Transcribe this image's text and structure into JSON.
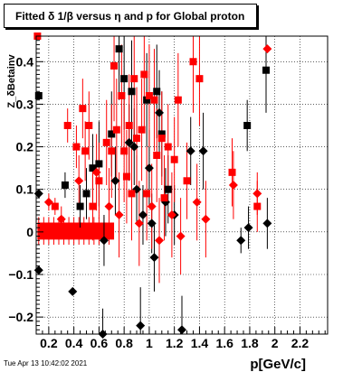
{
  "chart_data": {
    "type": "scatter",
    "title": "Fitted δ 1/β versus η and p for Global proton",
    "xlabel": "p[GeV/c]",
    "ylabel": "Z_δBetainv",
    "xlim": [
      0.1,
      2.42
    ],
    "ylim": [
      -0.24,
      0.46
    ],
    "xticks": [
      0.2,
      0.4,
      0.6,
      0.8,
      1.0,
      1.2,
      1.4,
      1.6,
      1.8,
      2.0,
      2.2
    ],
    "xtick_labels": [
      "0.2",
      "0.4",
      "0.6",
      "0.8",
      "1",
      "1.2",
      "1.4",
      "1.6",
      "1.8",
      "2",
      "2.2"
    ],
    "yticks": [
      -0.2,
      -0.1,
      0.0,
      0.1,
      0.2,
      0.3,
      0.4
    ],
    "ytick_labels": [
      "−0.2",
      "−0.1",
      "0",
      "0.1",
      "0.2",
      "0.3",
      "0.4"
    ],
    "grid": true,
    "series": [
      {
        "color": "#000000",
        "marker": "mixed",
        "points": [
          {
            "x": 0.12,
            "y": 0.32,
            "e": 0.0,
            "m": "sq"
          },
          {
            "x": 0.12,
            "y": 0.09,
            "e": 0.0,
            "m": "di"
          },
          {
            "x": 0.12,
            "y": -0.09,
            "e": 0.0,
            "m": "di"
          },
          {
            "x": 0.33,
            "y": 0.11,
            "e": 0.03,
            "m": "sq"
          },
          {
            "x": 0.39,
            "y": -0.14,
            "e": 0.0,
            "m": "di"
          },
          {
            "x": 0.45,
            "y": 0.06,
            "e": 0.05,
            "m": "sq"
          },
          {
            "x": 0.5,
            "y": 0.09,
            "e": 0.06,
            "m": "sq"
          },
          {
            "x": 0.55,
            "y": 0.15,
            "e": 0.08,
            "m": "sq"
          },
          {
            "x": 0.6,
            "y": 0.16,
            "e": 0.1,
            "m": "sq"
          },
          {
            "x": 0.63,
            "y": -0.24,
            "e": 0.06,
            "m": "di"
          },
          {
            "x": 0.64,
            "y": -0.02,
            "e": 0.06,
            "m": "di"
          },
          {
            "x": 0.7,
            "y": 0.23,
            "e": 0.1,
            "m": "sq"
          },
          {
            "x": 0.73,
            "y": 0.12,
            "e": 0.08,
            "m": "di"
          },
          {
            "x": 0.76,
            "y": 0.43,
            "e": 0.12,
            "m": "sq"
          },
          {
            "x": 0.8,
            "y": 0.36,
            "e": 0.12,
            "m": "sq"
          },
          {
            "x": 0.84,
            "y": 0.21,
            "e": 0.09,
            "m": "di"
          },
          {
            "x": 0.86,
            "y": 0.33,
            "e": 0.12,
            "m": "sq"
          },
          {
            "x": 0.88,
            "y": 0.2,
            "e": 0.09,
            "m": "di"
          },
          {
            "x": 0.9,
            "y": 0.1,
            "e": 0.08,
            "m": "di"
          },
          {
            "x": 0.93,
            "y": -0.22,
            "e": 0.09,
            "m": "di"
          },
          {
            "x": 0.95,
            "y": 0.04,
            "e": 0.07,
            "m": "di"
          },
          {
            "x": 0.98,
            "y": 0.31,
            "e": 0.11,
            "m": "sq"
          },
          {
            "x": 1.0,
            "y": 0.15,
            "e": 0.09,
            "m": "di"
          },
          {
            "x": 1.02,
            "y": 0.02,
            "e": 0.07,
            "m": "di"
          },
          {
            "x": 1.04,
            "y": -0.06,
            "e": 0.08,
            "m": "di"
          },
          {
            "x": 1.06,
            "y": 0.33,
            "e": 0.11,
            "m": "sq"
          },
          {
            "x": 1.08,
            "y": 0.28,
            "e": 0.1,
            "m": "di"
          },
          {
            "x": 1.1,
            "y": 0.23,
            "e": 0.1,
            "m": "sq"
          },
          {
            "x": 1.13,
            "y": 0.07,
            "e": 0.08,
            "m": "di"
          },
          {
            "x": 1.15,
            "y": 0.1,
            "e": 0.08,
            "m": "sq"
          },
          {
            "x": 1.2,
            "y": 0.04,
            "e": 0.07,
            "m": "di"
          },
          {
            "x": 1.26,
            "y": -0.23,
            "e": 0.08,
            "m": "di"
          },
          {
            "x": 1.33,
            "y": 0.19,
            "e": 0.08,
            "m": "di"
          },
          {
            "x": 1.43,
            "y": 0.19,
            "e": 0.09,
            "m": "di"
          },
          {
            "x": 1.73,
            "y": -0.02,
            "e": 0.03,
            "m": "di"
          },
          {
            "x": 1.78,
            "y": 0.25,
            "e": 0.06,
            "m": "sq"
          },
          {
            "x": 1.79,
            "y": 0.01,
            "e": 0.05,
            "m": "di"
          },
          {
            "x": 1.93,
            "y": 0.38,
            "e": 0.1,
            "m": "sq"
          },
          {
            "x": 1.94,
            "y": 0.02,
            "e": 0.06,
            "m": "di"
          }
        ]
      },
      {
        "color": "#ff0000",
        "marker": "mixed",
        "points": [
          {
            "x": 0.11,
            "y": 0.46,
            "e": 0.0,
            "m": "sq"
          },
          {
            "x": 0.2,
            "y": 0.07,
            "e": 0.02,
            "m": "di"
          },
          {
            "x": 0.25,
            "y": 0.06,
            "e": 0.02,
            "m": "sq"
          },
          {
            "x": 0.3,
            "y": 0.03,
            "e": 0.03,
            "m": "di"
          },
          {
            "x": 0.35,
            "y": 0.25,
            "e": 0.04,
            "m": "sq"
          },
          {
            "x": 0.42,
            "y": 0.2,
            "e": 0.05,
            "m": "sq"
          },
          {
            "x": 0.44,
            "y": 0.12,
            "e": 0.06,
            "m": "di"
          },
          {
            "x": 0.47,
            "y": 0.29,
            "e": 0.07,
            "m": "sq"
          },
          {
            "x": 0.49,
            "y": 0.19,
            "e": 0.07,
            "m": "sq"
          },
          {
            "x": 0.52,
            "y": 0.25,
            "e": 0.08,
            "m": "sq"
          },
          {
            "x": 0.55,
            "y": 0.06,
            "e": 0.08,
            "m": "sq"
          },
          {
            "x": 0.58,
            "y": 0.14,
            "e": 0.09,
            "m": "di"
          },
          {
            "x": 0.6,
            "y": 0.12,
            "e": 0.09,
            "m": "sq"
          },
          {
            "x": 0.66,
            "y": 0.21,
            "e": 0.1,
            "m": "sq"
          },
          {
            "x": 0.68,
            "y": 0.06,
            "e": 0.09,
            "m": "di"
          },
          {
            "x": 0.7,
            "y": 0.19,
            "e": 0.11,
            "m": "sq"
          },
          {
            "x": 0.72,
            "y": 0.39,
            "e": 0.13,
            "m": "sq"
          },
          {
            "x": 0.74,
            "y": 0.24,
            "e": 0.12,
            "m": "sq"
          },
          {
            "x": 0.76,
            "y": 0.04,
            "e": 0.1,
            "m": "di"
          },
          {
            "x": 0.78,
            "y": 0.32,
            "e": 0.12,
            "m": "sq"
          },
          {
            "x": 0.8,
            "y": 0.19,
            "e": 0.12,
            "m": "sq"
          },
          {
            "x": 0.82,
            "y": 0.13,
            "e": 0.11,
            "m": "sq"
          },
          {
            "x": 0.84,
            "y": 0.25,
            "e": 0.12,
            "m": "sq"
          },
          {
            "x": 0.86,
            "y": 0.09,
            "e": 0.11,
            "m": "sq"
          },
          {
            "x": 0.88,
            "y": 0.36,
            "e": 0.13,
            "m": "sq"
          },
          {
            "x": 0.9,
            "y": 0.22,
            "e": 0.12,
            "m": "sq"
          },
          {
            "x": 0.92,
            "y": 0.02,
            "e": 0.1,
            "m": "di"
          },
          {
            "x": 0.94,
            "y": 0.24,
            "e": 0.12,
            "m": "sq"
          },
          {
            "x": 0.96,
            "y": 0.37,
            "e": 0.13,
            "m": "sq"
          },
          {
            "x": 0.98,
            "y": 0.09,
            "e": 0.11,
            "m": "sq"
          },
          {
            "x": 1.0,
            "y": 0.32,
            "e": 0.12,
            "m": "sq"
          },
          {
            "x": 1.02,
            "y": 0.06,
            "e": 0.1,
            "m": "di"
          },
          {
            "x": 1.04,
            "y": 0.31,
            "e": 0.12,
            "m": "sq"
          },
          {
            "x": 1.06,
            "y": 0.18,
            "e": 0.11,
            "m": "sq"
          },
          {
            "x": 1.08,
            "y": -0.02,
            "e": 0.1,
            "m": "di"
          },
          {
            "x": 1.1,
            "y": 0.22,
            "e": 0.11,
            "m": "sq"
          },
          {
            "x": 1.12,
            "y": 0.08,
            "e": 0.1,
            "m": "sq"
          },
          {
            "x": 1.15,
            "y": 0.2,
            "e": 0.1,
            "m": "sq"
          },
          {
            "x": 1.18,
            "y": 0.04,
            "e": 0.1,
            "m": "di"
          },
          {
            "x": 1.2,
            "y": 0.17,
            "e": 0.1,
            "m": "sq"
          },
          {
            "x": 1.23,
            "y": 0.31,
            "e": 0.11,
            "m": "sq"
          },
          {
            "x": 1.25,
            "y": -0.01,
            "e": 0.09,
            "m": "di"
          },
          {
            "x": 1.3,
            "y": 0.12,
            "e": 0.09,
            "m": "sq"
          },
          {
            "x": 1.35,
            "y": 0.4,
            "e": 0.12,
            "m": "sq"
          },
          {
            "x": 1.38,
            "y": 0.07,
            "e": 0.09,
            "m": "di"
          },
          {
            "x": 1.4,
            "y": 0.36,
            "e": 0.11,
            "m": "sq"
          },
          {
            "x": 1.45,
            "y": 0.03,
            "e": 0.09,
            "m": "di"
          },
          {
            "x": 1.66,
            "y": 0.14,
            "e": 0.08,
            "m": "sq"
          },
          {
            "x": 1.67,
            "y": 0.11,
            "e": 0.08,
            "m": "di"
          },
          {
            "x": 1.86,
            "y": 0.06,
            "e": 0.06,
            "m": "sq"
          },
          {
            "x": 1.86,
            "y": 0.09,
            "e": 0.05,
            "m": "di"
          },
          {
            "x": 1.94,
            "y": 0.43,
            "e": 0.0,
            "m": "di"
          }
        ]
      }
    ]
  },
  "footer": {
    "timestamp": "Tue Apr 13 10:42:02 2021"
  }
}
